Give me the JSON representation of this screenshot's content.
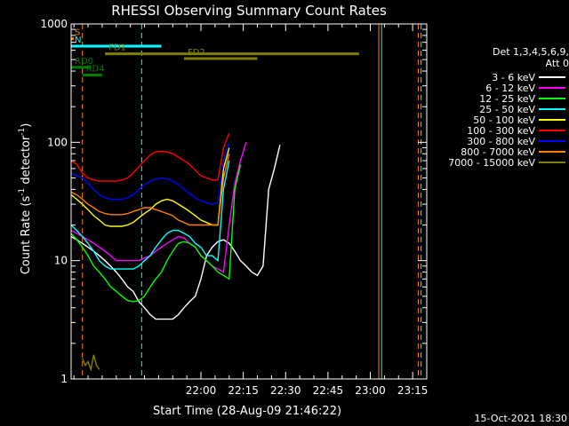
{
  "chart_data": {
    "type": "line",
    "title": "RHESSI Observing Summary Count Rates",
    "xlabel": "Start Time (28-Aug-09 21:46:22)",
    "ylabel": "Count Rate (s⁻¹ detector⁻¹)",
    "ylabel_parts": [
      "Count Rate (s",
      "-1",
      " detector",
      "-1",
      ")"
    ],
    "y_scale": "log",
    "ylim": [
      1,
      1000
    ],
    "xlim_minutes": [
      -46,
      80
    ],
    "x_ticks": [
      {
        "minute": 0,
        "label": "22:00"
      },
      {
        "minute": 15,
        "label": "22:15"
      },
      {
        "minute": 30,
        "label": "22:30"
      },
      {
        "minute": 45,
        "label": "22:45"
      },
      {
        "minute": 60,
        "label": "23:00"
      },
      {
        "minute": 75,
        "label": "23:15"
      }
    ],
    "y_ticks": [
      {
        "value": 1,
        "label": "1"
      },
      {
        "value": 10,
        "label": "10"
      },
      {
        "value": 100,
        "label": "100"
      },
      {
        "value": 1000,
        "label": "1000"
      }
    ],
    "detector_text": [
      "Det 1,3,4,5,6,9,",
      "Att 0"
    ],
    "legend_position": "right",
    "date_stamp": "15-Oct-2021 18:30",
    "series": [
      {
        "name": "3 - 6 keV",
        "color": "#ffffff",
        "x": [
          -46,
          -44,
          -42,
          -40,
          -38,
          -36,
          -34,
          -32,
          -30,
          -28,
          -26,
          -24,
          -22,
          -20,
          -18,
          -16,
          -14,
          -12,
          -10,
          -8,
          -6,
          -4,
          -2,
          0,
          2,
          4,
          6,
          8,
          10,
          12,
          14,
          16,
          18,
          20,
          22,
          24,
          26,
          28,
          30,
          32,
          34,
          36,
          38,
          40,
          42,
          44,
          46,
          48,
          50,
          52,
          54,
          56,
          58,
          60,
          62,
          64,
          66,
          68,
          70,
          72,
          74,
          76,
          78,
          80
        ],
        "y": [
          16,
          15,
          14,
          13,
          12,
          11,
          10,
          9,
          8,
          7,
          6,
          5.5,
          4.5,
          4,
          3.5,
          3.2,
          3.2,
          3.2,
          3.2,
          3.5,
          4,
          4.5,
          5,
          7,
          11,
          13,
          14.5,
          15,
          14,
          12,
          10,
          9,
          8,
          7.5,
          9,
          40,
          60,
          95,
          null,
          null,
          null,
          null,
          null,
          null,
          null,
          null,
          null,
          null,
          null,
          null,
          null,
          null,
          null,
          null,
          null,
          null,
          null,
          null,
          null,
          null,
          null,
          null,
          null,
          null
        ]
      },
      {
        "name": "6 - 12 keV",
        "color": "#ff00ff",
        "x": [
          -46,
          -44,
          -42,
          -40,
          -38,
          -36,
          -34,
          -32,
          -30,
          -28,
          -26,
          -24,
          -22,
          -20,
          -18,
          -16,
          -14,
          -12,
          -10,
          -8,
          -6,
          -4,
          -2,
          0,
          2,
          4,
          6,
          8,
          10,
          12,
          14,
          16,
          18,
          20,
          22,
          24,
          26,
          28,
          30
        ],
        "y": [
          18,
          17,
          16,
          15,
          14,
          13,
          12,
          11,
          10,
          10,
          10,
          10,
          10,
          10.5,
          11,
          12,
          13,
          14,
          15,
          16,
          15.5,
          14,
          13,
          11,
          10,
          9,
          8.5,
          8,
          20,
          45,
          70,
          100,
          null,
          null,
          null,
          null,
          null,
          null,
          null
        ]
      },
      {
        "name": "12 - 25 keV",
        "color": "#00ff00",
        "x": [
          -46,
          -44,
          -42,
          -40,
          -38,
          -36,
          -34,
          -32,
          -30,
          -28,
          -26,
          -24,
          -22,
          -20,
          -18,
          -16,
          -14,
          -12,
          -10,
          -8,
          -6,
          -4,
          -2,
          0,
          2,
          4,
          6,
          8,
          10,
          12,
          14,
          16,
          18,
          20,
          22,
          24,
          26,
          28,
          30
        ],
        "y": [
          17,
          15,
          13,
          11,
          9,
          8,
          7,
          6,
          5.5,
          5,
          4.6,
          4.5,
          4.6,
          5,
          6,
          7,
          8,
          10,
          12,
          14,
          14.5,
          14,
          13,
          11,
          10,
          9,
          8,
          7.5,
          7,
          40,
          65,
          null,
          null,
          null,
          null,
          null,
          null,
          null,
          null
        ]
      },
      {
        "name": "25 - 50 keV",
        "color": "#00ffff",
        "x": [
          -46,
          -44,
          -42,
          -40,
          -38,
          -36,
          -34,
          -32,
          -30,
          -28,
          -26,
          -24,
          -22,
          -20,
          -18,
          -16,
          -14,
          -12,
          -10,
          -8,
          -6,
          -4,
          -2,
          0,
          2,
          4,
          6,
          8,
          10
        ],
        "y": [
          20,
          18,
          16,
          14,
          12,
          10,
          9,
          8.5,
          8.5,
          8.5,
          8.5,
          8.5,
          9,
          10,
          11,
          13,
          15,
          17,
          18,
          18,
          17,
          16,
          14,
          13,
          11,
          11,
          10,
          40,
          70
        ]
      },
      {
        "name": "50 - 100 keV",
        "color": "#ffff00",
        "x": [
          -46,
          -44,
          -42,
          -40,
          -38,
          -36,
          -34,
          -32,
          -30,
          -28,
          -26,
          -24,
          -22,
          -20,
          -18,
          -16,
          -14,
          -12,
          -10,
          -8,
          -6,
          -4,
          -2,
          0,
          2,
          4,
          6,
          8,
          10
        ],
        "y": [
          36,
          33,
          30,
          27,
          24,
          22,
          20,
          19.5,
          19.5,
          19.5,
          20,
          21,
          23,
          25,
          27,
          30,
          32,
          33,
          32,
          30,
          28,
          26,
          24,
          22,
          21,
          20,
          20,
          60,
          90
        ]
      },
      {
        "name": "100 - 300 keV",
        "color": "#ff0000",
        "x": [
          -46,
          -44,
          -42,
          -40,
          -38,
          -36,
          -34,
          -32,
          -30,
          -28,
          -26,
          -24,
          -22,
          -20,
          -18,
          -16,
          -14,
          -12,
          -10,
          -8,
          -6,
          -4,
          -2,
          0,
          2,
          4,
          6,
          8,
          10
        ],
        "y": [
          70,
          65,
          55,
          50,
          48,
          47,
          47,
          47,
          47,
          48,
          50,
          55,
          62,
          70,
          78,
          83,
          84,
          83,
          80,
          75,
          70,
          65,
          58,
          52,
          50,
          48,
          48,
          90,
          120
        ]
      },
      {
        "name": "300 - 800 keV",
        "color": "#0000ff",
        "x": [
          -46,
          -44,
          -42,
          -40,
          -38,
          -36,
          -34,
          -32,
          -30,
          -28,
          -26,
          -24,
          -22,
          -20,
          -18,
          -16,
          -14,
          -12,
          -10,
          -8,
          -6,
          -4,
          -2,
          0,
          2,
          4,
          6,
          8,
          10
        ],
        "y": [
          55,
          52,
          50,
          45,
          40,
          36,
          34,
          33,
          33,
          33,
          34,
          36,
          40,
          44,
          47,
          49,
          50,
          49,
          47,
          44,
          40,
          37,
          34,
          32,
          31,
          30,
          31,
          70,
          100
        ]
      },
      {
        "name": "800 - 7000 keV",
        "color": "#ff8000",
        "x": [
          -46,
          -44,
          -42,
          -40,
          -38,
          -36,
          -34,
          -32,
          -30,
          -28,
          -26,
          -24,
          -22,
          -20,
          -18,
          -16,
          -14,
          -12,
          -10,
          -8,
          -6,
          -4,
          -2,
          0,
          2,
          4,
          6,
          8,
          10
        ],
        "y": [
          38,
          36,
          33,
          30,
          28,
          26,
          25,
          24.5,
          24.5,
          24.5,
          25,
          26,
          27,
          28,
          28,
          27,
          26,
          25,
          24,
          22,
          21,
          20,
          20,
          20,
          20,
          20,
          20,
          50,
          80
        ]
      },
      {
        "name": "7000 - 15000 keV",
        "color": "#808000",
        "x": [
          -42,
          -41,
          -40,
          -39,
          -38,
          -37,
          -36
        ],
        "y": [
          1.5,
          1.3,
          1.4,
          1.2,
          1.6,
          1.3,
          1.2
        ]
      }
    ],
    "annotations": {
      "attenuator_states": [
        {
          "label": "S",
          "color": "#ff8000",
          "start": -46,
          "end": -45,
          "level": 750
        },
        {
          "label": "N",
          "color": "#00ffff",
          "start": -46,
          "end": -14,
          "level": 650
        },
        {
          "label": "FD1",
          "color": "#808000",
          "start": -34,
          "end": 56,
          "level": 560
        },
        {
          "label": "FD2",
          "color": "#808000",
          "start": -6,
          "end": 20,
          "level": 510
        },
        {
          "label": "RD0",
          "color": "#008000",
          "start": -46,
          "end": -39,
          "level": 430
        },
        {
          "label": "RD4",
          "color": "#008000",
          "start": -42,
          "end": -35,
          "level": 370
        }
      ],
      "vertical_markers": [
        {
          "minute": -42,
          "color": "#ff8000",
          "style": "dashed"
        },
        {
          "minute": -21,
          "color": "#00ffff",
          "style": "dashed"
        },
        {
          "minute": 63,
          "color": "#ff8000",
          "style": "solid"
        },
        {
          "minute": 64,
          "color": "#00ffff",
          "style": "solid"
        },
        {
          "minute": 77,
          "color": "#ff8000",
          "style": "dashed"
        },
        {
          "minute": 78,
          "color": "#00ffff",
          "style": "dashed"
        }
      ]
    }
  },
  "colors": {
    "background": "#000000",
    "foreground": "#ffffff"
  }
}
